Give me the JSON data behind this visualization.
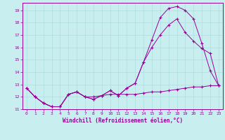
{
  "xlabel": "Windchill (Refroidissement éolien,°C)",
  "bg_color": "#c8eef0",
  "line_color": "#990099",
  "grid_color": "#b0dde0",
  "xlim": [
    -0.5,
    23.5
  ],
  "ylim": [
    11.0,
    19.6
  ],
  "yticks": [
    11,
    12,
    13,
    14,
    15,
    16,
    17,
    18,
    19
  ],
  "xticks": [
    0,
    1,
    2,
    3,
    4,
    5,
    6,
    7,
    8,
    9,
    10,
    11,
    12,
    13,
    14,
    15,
    16,
    17,
    18,
    19,
    20,
    21,
    22,
    23
  ],
  "curve1_x": [
    0,
    1,
    2,
    3,
    4,
    5,
    6,
    7,
    8,
    9,
    10,
    11,
    12,
    13,
    14,
    15,
    16,
    17,
    18,
    19,
    20,
    21,
    22,
    23
  ],
  "curve1_y": [
    12.7,
    12.0,
    11.5,
    11.2,
    11.2,
    12.2,
    12.4,
    12.0,
    11.8,
    12.1,
    12.5,
    12.1,
    12.7,
    13.1,
    14.8,
    16.6,
    18.4,
    19.15,
    19.3,
    19.0,
    18.3,
    16.3,
    14.1,
    12.9
  ],
  "curve2_x": [
    0,
    1,
    2,
    3,
    4,
    5,
    6,
    7,
    8,
    9,
    10,
    11,
    12,
    13,
    14,
    15,
    16,
    17,
    18,
    19,
    20,
    21,
    22,
    23
  ],
  "curve2_y": [
    12.7,
    12.0,
    11.5,
    11.2,
    11.2,
    12.2,
    12.4,
    12.0,
    11.8,
    12.1,
    12.5,
    12.1,
    12.7,
    13.1,
    14.8,
    16.0,
    17.0,
    17.8,
    18.3,
    17.2,
    16.5,
    15.9,
    15.5,
    12.9
  ],
  "curve3_x": [
    0,
    1,
    2,
    3,
    4,
    5,
    6,
    7,
    8,
    9,
    10,
    11,
    12,
    13,
    14,
    15,
    16,
    17,
    18,
    19,
    20,
    21,
    22,
    23
  ],
  "curve3_y": [
    12.7,
    12.0,
    11.5,
    11.2,
    11.2,
    12.2,
    12.4,
    12.0,
    12.0,
    12.1,
    12.2,
    12.2,
    12.2,
    12.2,
    12.3,
    12.4,
    12.4,
    12.5,
    12.6,
    12.7,
    12.8,
    12.8,
    12.9,
    12.9
  ]
}
